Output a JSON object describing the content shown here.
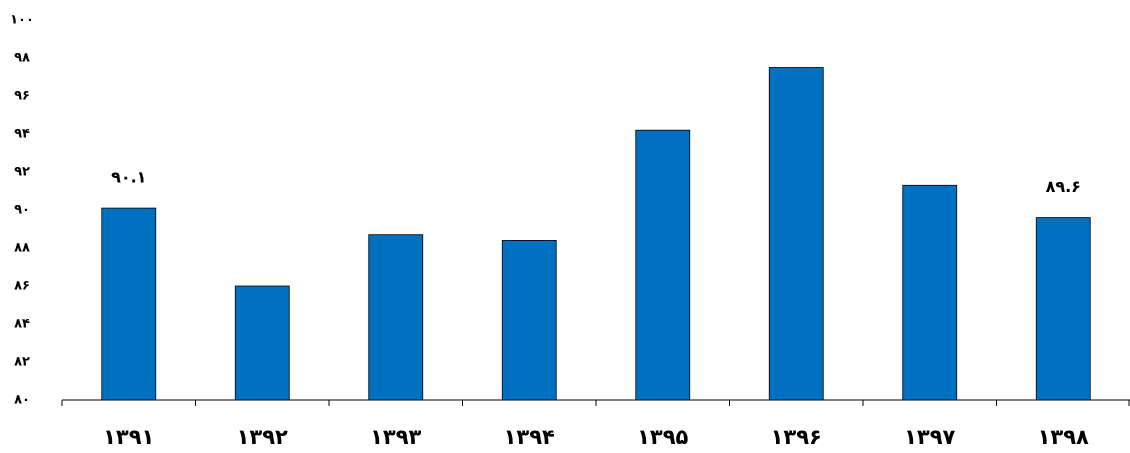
{
  "chart_data": {
    "type": "bar",
    "categories": [
      "۱۳۹۱",
      "۱۳۹۲",
      "۱۳۹۳",
      "۱۳۹۴",
      "۱۳۹۵",
      "۱۳۹۶",
      "۱۳۹۷",
      "۱۳۹۸"
    ],
    "values": [
      90.1,
      86.0,
      88.7,
      88.4,
      94.2,
      97.5,
      91.3,
      89.6
    ],
    "value_labels": [
      "۹۰.۱",
      null,
      null,
      null,
      null,
      null,
      null,
      "۸۹.۶"
    ],
    "color": "#0070c0",
    "ylim": [
      80,
      100
    ],
    "yticks": [
      {
        "value": 80,
        "label": "۸۰"
      },
      {
        "value": 82,
        "label": "۸۲"
      },
      {
        "value": 84,
        "label": "۸۴"
      },
      {
        "value": 86,
        "label": "۸۶"
      },
      {
        "value": 88,
        "label": "۸۸"
      },
      {
        "value": 90,
        "label": "۹۰"
      },
      {
        "value": 92,
        "label": "۹۲"
      },
      {
        "value": 94,
        "label": "۹۴"
      },
      {
        "value": 96,
        "label": "۹۶"
      },
      {
        "value": 98,
        "label": "۹۸"
      },
      {
        "value": 100,
        "label": "۱۰۰"
      }
    ],
    "grid": false
  }
}
